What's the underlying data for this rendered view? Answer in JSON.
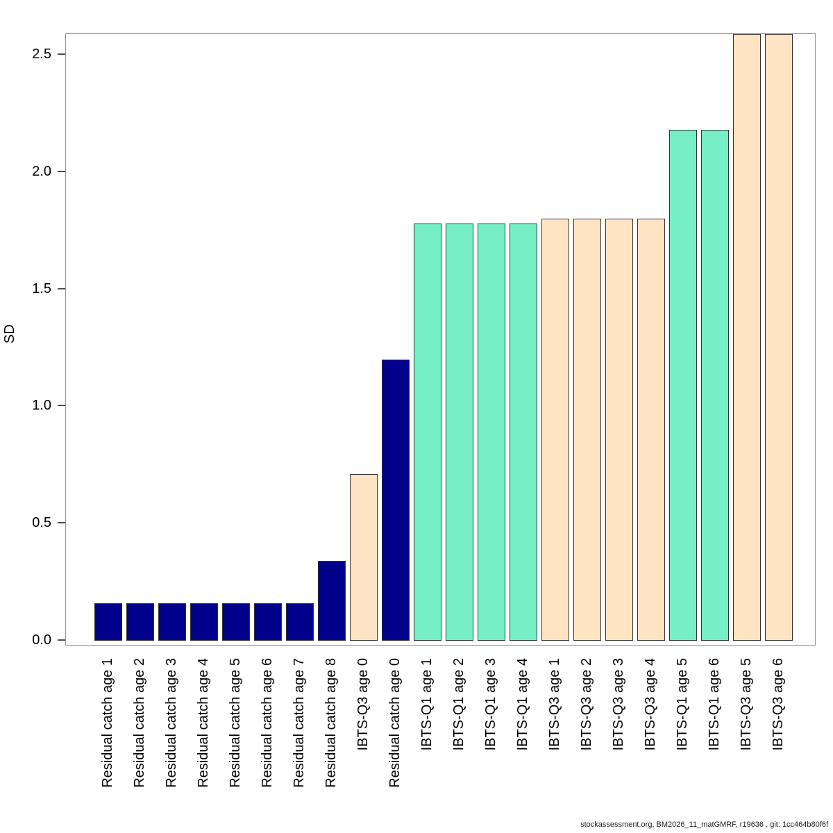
{
  "chart_data": {
    "type": "bar",
    "title": "",
    "xlabel": "",
    "ylabel": "SD",
    "ylim": [
      0,
      2.59
    ],
    "grid": false,
    "legend": null,
    "ytick_labels": [
      "0.0",
      "0.5",
      "1.0",
      "1.5",
      "2.0",
      "2.5"
    ],
    "ytick_values": [
      0.0,
      0.5,
      1.0,
      1.5,
      2.0,
      2.5
    ],
    "palette": {
      "residual_catch": "#00008B",
      "ibts_q1": "#76EEC6",
      "ibts_q3": "#FFE4C4"
    },
    "bars": [
      {
        "label": "Residual catch age 1",
        "value": 0.16,
        "group": "residual_catch"
      },
      {
        "label": "Residual catch age 2",
        "value": 0.16,
        "group": "residual_catch"
      },
      {
        "label": "Residual catch age 3",
        "value": 0.16,
        "group": "residual_catch"
      },
      {
        "label": "Residual catch age 4",
        "value": 0.16,
        "group": "residual_catch"
      },
      {
        "label": "Residual catch age 5",
        "value": 0.16,
        "group": "residual_catch"
      },
      {
        "label": "Residual catch age 6",
        "value": 0.16,
        "group": "residual_catch"
      },
      {
        "label": "Residual catch age 7",
        "value": 0.16,
        "group": "residual_catch"
      },
      {
        "label": "Residual catch age 8",
        "value": 0.34,
        "group": "residual_catch"
      },
      {
        "label": "IBTS-Q3 age 0",
        "value": 0.71,
        "group": "ibts_q3"
      },
      {
        "label": "Residual catch age 0",
        "value": 1.2,
        "group": "residual_catch"
      },
      {
        "label": "IBTS-Q1 age 1",
        "value": 1.78,
        "group": "ibts_q1"
      },
      {
        "label": "IBTS-Q1 age 2",
        "value": 1.78,
        "group": "ibts_q1"
      },
      {
        "label": "IBTS-Q1 age 3",
        "value": 1.78,
        "group": "ibts_q1"
      },
      {
        "label": "IBTS-Q1 age 4",
        "value": 1.78,
        "group": "ibts_q1"
      },
      {
        "label": "IBTS-Q3 age 1",
        "value": 1.8,
        "group": "ibts_q3"
      },
      {
        "label": "IBTS-Q3 age 2",
        "value": 1.8,
        "group": "ibts_q3"
      },
      {
        "label": "IBTS-Q3 age 3",
        "value": 1.8,
        "group": "ibts_q3"
      },
      {
        "label": "IBTS-Q3 age 4",
        "value": 1.8,
        "group": "ibts_q3"
      },
      {
        "label": "IBTS-Q1 age 5",
        "value": 2.18,
        "group": "ibts_q1"
      },
      {
        "label": "IBTS-Q1 age 6",
        "value": 2.18,
        "group": "ibts_q1"
      },
      {
        "label": "IBTS-Q3 age 5",
        "value": 2.59,
        "group": "ibts_q3"
      },
      {
        "label": "IBTS-Q3 age 6",
        "value": 2.59,
        "group": "ibts_q3"
      }
    ]
  },
  "footer": {
    "credit_text": "stockassessment.org, BM2026_11_matGMRF, r19636 , git: 1cc464b80f6f"
  }
}
